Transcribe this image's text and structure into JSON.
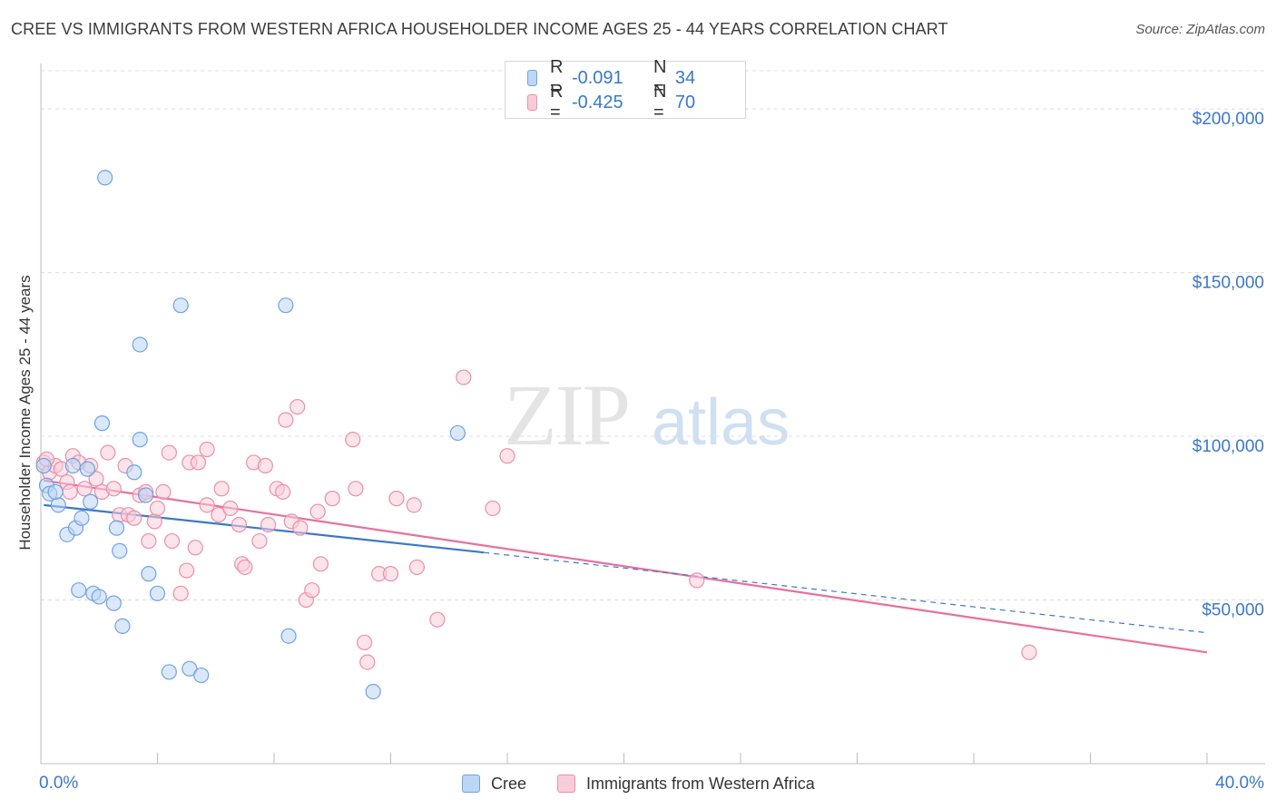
{
  "title": "CREE VS IMMIGRANTS FROM WESTERN AFRICA HOUSEHOLDER INCOME AGES 25 - 44 YEARS CORRELATION CHART",
  "source": "Source: ZipAtlas.com",
  "watermark": {
    "zip": "ZIP",
    "atlas": "atlas"
  },
  "legend_stats": [
    {
      "r_label": "R =",
      "r_value": "-0.091",
      "n_label": "N =",
      "n_value": "34",
      "color": "#a9c9f2",
      "border": "#6fa3e0"
    },
    {
      "r_label": "R =",
      "r_value": "-0.425",
      "n_label": "N =",
      "n_value": "70",
      "color": "#f7c3d2",
      "border": "#ec8eaa"
    }
  ],
  "chart_data": {
    "type": "scatter",
    "title": "CREE VS IMMIGRANTS FROM WESTERN AFRICA HOUSEHOLDER INCOME AGES 25 - 44 YEARS CORRELATION CHART",
    "xlabel": "",
    "ylabel": "Householder Income Ages 25 - 44 years",
    "xlim": [
      0,
      40
    ],
    "ylim": [
      0,
      210000
    ],
    "x_tick_labels": [
      "0.0%",
      "40.0%"
    ],
    "y_ticks": [
      50000,
      100000,
      150000,
      200000
    ],
    "y_tick_labels": [
      "$50,000",
      "$100,000",
      "$150,000",
      "$200,000"
    ],
    "grid": true,
    "legend_position": "bottom",
    "series": [
      {
        "name": "Cree",
        "color": "#6fa3e0",
        "fill": "#bcd6f5",
        "trend": {
          "x": [
            0.1,
            15.2
          ],
          "y": [
            79000,
            64500
          ],
          "dashed_extension": {
            "x": [
              15.2,
              40.0
            ],
            "y": [
              64500,
              40000
            ]
          },
          "line_color": "#3a78c9"
        },
        "points": [
          {
            "x": 0.1,
            "y": 91000
          },
          {
            "x": 0.2,
            "y": 85000
          },
          {
            "x": 0.3,
            "y": 82500
          },
          {
            "x": 0.6,
            "y": 79000
          },
          {
            "x": 0.9,
            "y": 70000
          },
          {
            "x": 1.1,
            "y": 91000
          },
          {
            "x": 1.2,
            "y": 72000
          },
          {
            "x": 1.3,
            "y": 53000
          },
          {
            "x": 1.4,
            "y": 75000
          },
          {
            "x": 1.6,
            "y": 90000
          },
          {
            "x": 1.7,
            "y": 80000
          },
          {
            "x": 1.8,
            "y": 52000
          },
          {
            "x": 2.0,
            "y": 51000
          },
          {
            "x": 2.1,
            "y": 104000
          },
          {
            "x": 2.2,
            "y": 179000
          },
          {
            "x": 2.5,
            "y": 49000
          },
          {
            "x": 2.6,
            "y": 72000
          },
          {
            "x": 2.7,
            "y": 65000
          },
          {
            "x": 2.8,
            "y": 42000
          },
          {
            "x": 3.2,
            "y": 89000
          },
          {
            "x": 3.4,
            "y": 128000
          },
          {
            "x": 3.4,
            "y": 99000
          },
          {
            "x": 3.6,
            "y": 82000
          },
          {
            "x": 3.7,
            "y": 58000
          },
          {
            "x": 4.0,
            "y": 52000
          },
          {
            "x": 4.4,
            "y": 28000
          },
          {
            "x": 4.8,
            "y": 140000
          },
          {
            "x": 5.1,
            "y": 29000
          },
          {
            "x": 5.5,
            "y": 27000
          },
          {
            "x": 8.4,
            "y": 140000
          },
          {
            "x": 8.5,
            "y": 39000
          },
          {
            "x": 11.4,
            "y": 22000
          },
          {
            "x": 14.3,
            "y": 101000
          },
          {
            "x": 0.5,
            "y": 83000
          }
        ]
      },
      {
        "name": "Immigrants from Western Africa",
        "color": "#ec8eaa",
        "fill": "#f8cdd9",
        "trend": {
          "x": [
            0.1,
            40.0
          ],
          "y": [
            86500,
            34000
          ],
          "line_color": "#e8709a"
        },
        "points": [
          {
            "x": 0.1,
            "y": 92000
          },
          {
            "x": 0.3,
            "y": 89000
          },
          {
            "x": 0.5,
            "y": 91000
          },
          {
            "x": 0.7,
            "y": 90000
          },
          {
            "x": 0.9,
            "y": 86000
          },
          {
            "x": 1.0,
            "y": 83000
          },
          {
            "x": 1.1,
            "y": 94000
          },
          {
            "x": 1.3,
            "y": 92000
          },
          {
            "x": 1.5,
            "y": 84000
          },
          {
            "x": 1.7,
            "y": 91000
          },
          {
            "x": 1.9,
            "y": 87000
          },
          {
            "x": 2.1,
            "y": 83000
          },
          {
            "x": 2.3,
            "y": 95000
          },
          {
            "x": 2.5,
            "y": 84000
          },
          {
            "x": 2.7,
            "y": 76000
          },
          {
            "x": 2.9,
            "y": 91000
          },
          {
            "x": 3.0,
            "y": 76000
          },
          {
            "x": 3.2,
            "y": 75000
          },
          {
            "x": 3.4,
            "y": 82000
          },
          {
            "x": 3.6,
            "y": 83000
          },
          {
            "x": 3.7,
            "y": 68000
          },
          {
            "x": 3.9,
            "y": 74000
          },
          {
            "x": 4.0,
            "y": 78000
          },
          {
            "x": 4.2,
            "y": 83000
          },
          {
            "x": 4.4,
            "y": 95000
          },
          {
            "x": 4.5,
            "y": 68000
          },
          {
            "x": 4.8,
            "y": 52000
          },
          {
            "x": 5.0,
            "y": 59000
          },
          {
            "x": 5.1,
            "y": 92000
          },
          {
            "x": 5.3,
            "y": 66000
          },
          {
            "x": 5.4,
            "y": 92000
          },
          {
            "x": 5.7,
            "y": 96000
          },
          {
            "x": 5.7,
            "y": 79000
          },
          {
            "x": 6.1,
            "y": 76000
          },
          {
            "x": 6.2,
            "y": 84000
          },
          {
            "x": 6.5,
            "y": 78000
          },
          {
            "x": 6.8,
            "y": 73000
          },
          {
            "x": 6.9,
            "y": 61000
          },
          {
            "x": 7.0,
            "y": 60000
          },
          {
            "x": 7.3,
            "y": 92000
          },
          {
            "x": 7.5,
            "y": 68000
          },
          {
            "x": 7.7,
            "y": 91000
          },
          {
            "x": 7.8,
            "y": 73000
          },
          {
            "x": 8.1,
            "y": 84000
          },
          {
            "x": 8.3,
            "y": 83000
          },
          {
            "x": 8.4,
            "y": 105000
          },
          {
            "x": 8.6,
            "y": 74000
          },
          {
            "x": 8.8,
            "y": 109000
          },
          {
            "x": 8.9,
            "y": 72000
          },
          {
            "x": 9.1,
            "y": 50000
          },
          {
            "x": 9.3,
            "y": 53000
          },
          {
            "x": 9.5,
            "y": 77000
          },
          {
            "x": 9.6,
            "y": 61000
          },
          {
            "x": 10.0,
            "y": 81000
          },
          {
            "x": 10.7,
            "y": 99000
          },
          {
            "x": 10.8,
            "y": 84000
          },
          {
            "x": 11.1,
            "y": 37000
          },
          {
            "x": 11.2,
            "y": 31000
          },
          {
            "x": 11.6,
            "y": 58000
          },
          {
            "x": 12.0,
            "y": 58000
          },
          {
            "x": 12.2,
            "y": 81000
          },
          {
            "x": 12.8,
            "y": 79000
          },
          {
            "x": 12.9,
            "y": 60000
          },
          {
            "x": 13.6,
            "y": 44000
          },
          {
            "x": 14.5,
            "y": 118000
          },
          {
            "x": 15.5,
            "y": 78000
          },
          {
            "x": 16.0,
            "y": 94000
          },
          {
            "x": 22.5,
            "y": 56000
          },
          {
            "x": 33.9,
            "y": 34000
          },
          {
            "x": 0.2,
            "y": 93000
          }
        ]
      }
    ]
  }
}
